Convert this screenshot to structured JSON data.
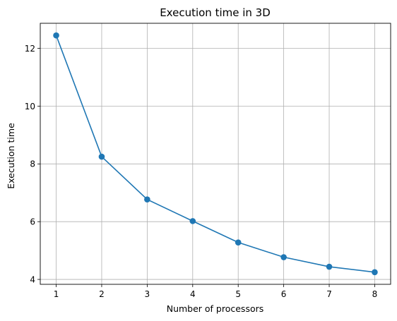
{
  "chart_data": {
    "type": "line",
    "title": "Execution time in 3D",
    "xlabel": "Number of processors",
    "ylabel": "Execution time",
    "x": [
      1,
      2,
      3,
      4,
      5,
      6,
      7,
      8
    ],
    "series": [
      {
        "values": [
          12.45,
          8.25,
          6.77,
          6.02,
          5.28,
          4.77,
          4.44,
          4.25
        ]
      }
    ],
    "xticks": [
      1,
      2,
      3,
      4,
      5,
      6,
      7,
      8
    ],
    "yticks": [
      4,
      6,
      8,
      10,
      12
    ],
    "xlim": [
      0.65,
      8.35
    ],
    "ylim": [
      3.83,
      12.87
    ],
    "grid": true,
    "line_color": "#1f77b4",
    "marker": "circle"
  }
}
